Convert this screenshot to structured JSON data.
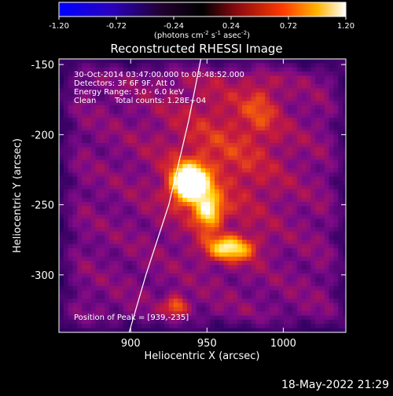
{
  "chart_data": {
    "type": "heatmap",
    "title": "Reconstructed RHESSI Image",
    "colorbar": {
      "min": -1.2,
      "max": 1.2,
      "tick_labels": [
        "-1.20",
        "-0.72",
        "-0.24",
        "0.24",
        "0.72",
        "1.20"
      ],
      "label_main": "(photons cm",
      "label_exp1": "-2",
      "label_mid": " s",
      "label_exp2": "-1",
      "label_mid2": " asec",
      "label_exp3": "-2",
      "label_end": ")"
    },
    "xlabel": "Heliocentric X (arcsec)",
    "ylabel": "Heliocentric Y (arcsec)",
    "xlim": [
      853,
      1041
    ],
    "ylim": [
      -341,
      -146
    ],
    "x_ticks": [
      900,
      950,
      1000
    ],
    "y_ticks": [
      -150,
      -200,
      -250,
      -300
    ],
    "annotations": [
      "30-Oct-2014 03:47:00.000 to 03:48:52.000",
      "Detectors: 3F 6F 9F, Att 0",
      "Energy Range: 3.0 - 6.0 keV",
      "Clean",
      "Total counts: 1.28E+04"
    ],
    "peak_label": "Position of Peak = [939,-235]",
    "peak": [
      939,
      -235
    ],
    "limb_points": [
      [
        946,
        -146
      ],
      [
        938,
        -190
      ],
      [
        925,
        -250
      ],
      [
        910,
        -300
      ],
      [
        899,
        -341
      ]
    ],
    "sources": [
      {
        "x": 939,
        "y": -235,
        "amp": 1.0,
        "sx": 8,
        "sy": 9
      },
      {
        "x": 951,
        "y": -255,
        "amp": 0.55,
        "sx": 6,
        "sy": 8
      },
      {
        "x": 965,
        "y": -281,
        "amp": 0.55,
        "sx": 11,
        "sy": 6
      },
      {
        "x": 930,
        "y": -322,
        "amp": 0.35,
        "sx": 5,
        "sy": 5
      },
      {
        "x": 960,
        "y": -215,
        "amp": 0.2,
        "sx": 30,
        "sy": 40
      },
      {
        "x": 985,
        "y": -180,
        "amp": 0.15,
        "sx": 8,
        "sy": 14
      }
    ],
    "colormap": [
      "#000000",
      "#2a005e",
      "#7a0a88",
      "#c81b3b",
      "#ff6a00",
      "#ffd200",
      "#ffffff"
    ],
    "timestamp": "18-May-2022 21:29"
  }
}
